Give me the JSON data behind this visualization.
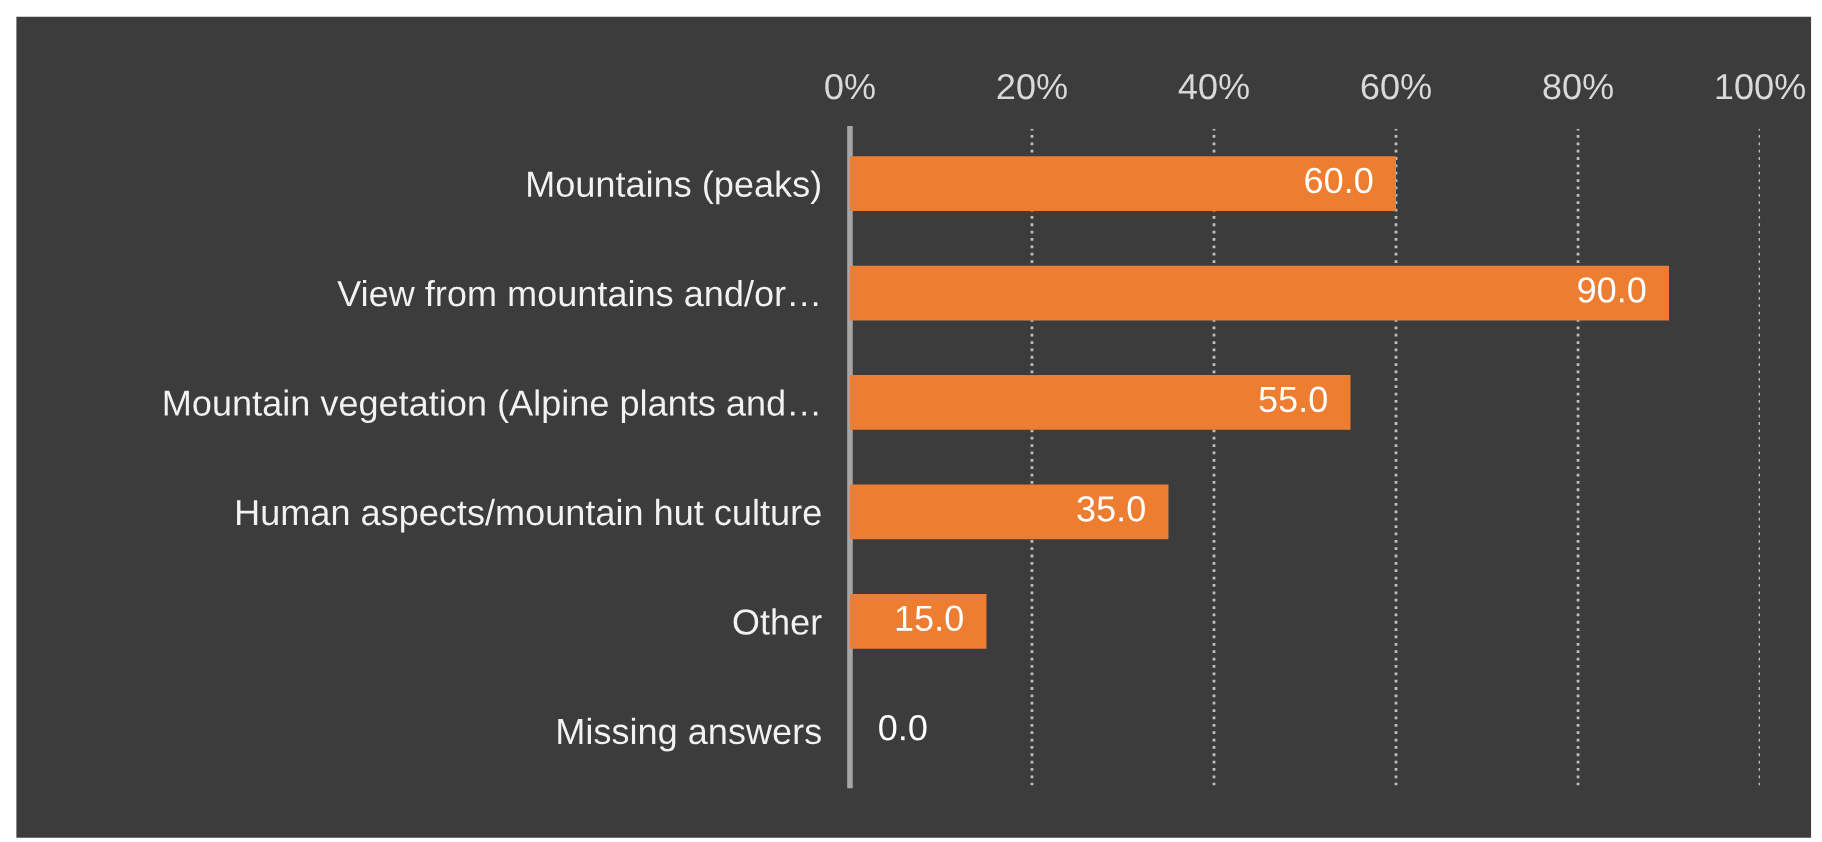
{
  "chart_data": {
    "type": "bar",
    "orientation": "horizontal",
    "categories": [
      "Mountains (peaks)",
      "View from mountains and/or…",
      "Mountain vegetation (Alpine plants and…",
      "Human aspects/mountain hut culture",
      "Other",
      "Missing answers"
    ],
    "values": [
      60,
      90,
      55,
      35,
      15,
      0
    ],
    "value_labels": [
      "60.0",
      "90.0",
      "55.0",
      "35.0",
      "15.0",
      "0.0"
    ],
    "color": "#ed7d31",
    "xlim": [
      0,
      100
    ],
    "xticks": [
      {
        "value": 0,
        "label": "0%"
      },
      {
        "value": 20,
        "label": "20%"
      },
      {
        "value": 40,
        "label": "40%"
      },
      {
        "value": 60,
        "label": "60%"
      },
      {
        "value": 80,
        "label": "80%"
      },
      {
        "value": 100,
        "label": "100%"
      }
    ],
    "grid": "x",
    "legend": false
  }
}
